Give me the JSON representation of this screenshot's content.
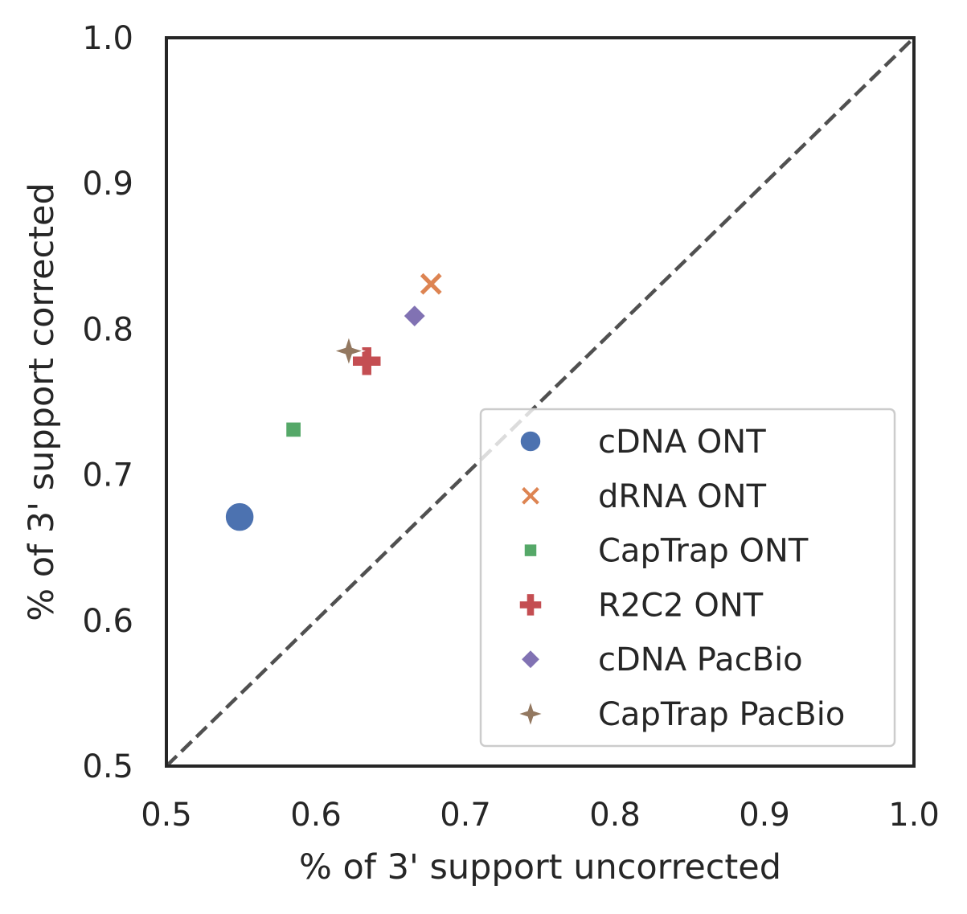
{
  "chart_data": {
    "type": "scatter",
    "xlabel": "% of 3' support uncorrected",
    "ylabel": "% of 3' support corrected",
    "xlim": [
      0.5,
      1.0
    ],
    "ylim": [
      0.5,
      1.0
    ],
    "xticks": [
      "0.5",
      "0.6",
      "0.7",
      "0.8",
      "0.9",
      "1.0"
    ],
    "yticks": [
      "0.5",
      "0.6",
      "0.7",
      "0.8",
      "0.9",
      "1.0"
    ],
    "grid": false,
    "legend_position": "lower-right",
    "reference_line": {
      "style": "dashed",
      "color": "#505050",
      "from": [
        0.5,
        0.5
      ],
      "to": [
        1.0,
        1.0
      ]
    },
    "series": [
      {
        "name": "cDNA ONT",
        "marker": "circle",
        "color": "#4c72b0",
        "x": 0.549,
        "y": 0.671
      },
      {
        "name": "dRNA ONT",
        "marker": "x",
        "color": "#dd8452",
        "x": 0.677,
        "y": 0.831
      },
      {
        "name": "CapTrap ONT",
        "marker": "square",
        "color": "#55a868",
        "x": 0.585,
        "y": 0.731
      },
      {
        "name": "R2C2 ONT",
        "marker": "plus",
        "color": "#c44e52",
        "x": 0.634,
        "y": 0.778
      },
      {
        "name": "cDNA PacBio",
        "marker": "diamond",
        "color": "#8172b3",
        "x": 0.666,
        "y": 0.809
      },
      {
        "name": "CapTrap PacBio",
        "marker": "star4",
        "color": "#937860",
        "x": 0.622,
        "y": 0.785
      }
    ]
  }
}
